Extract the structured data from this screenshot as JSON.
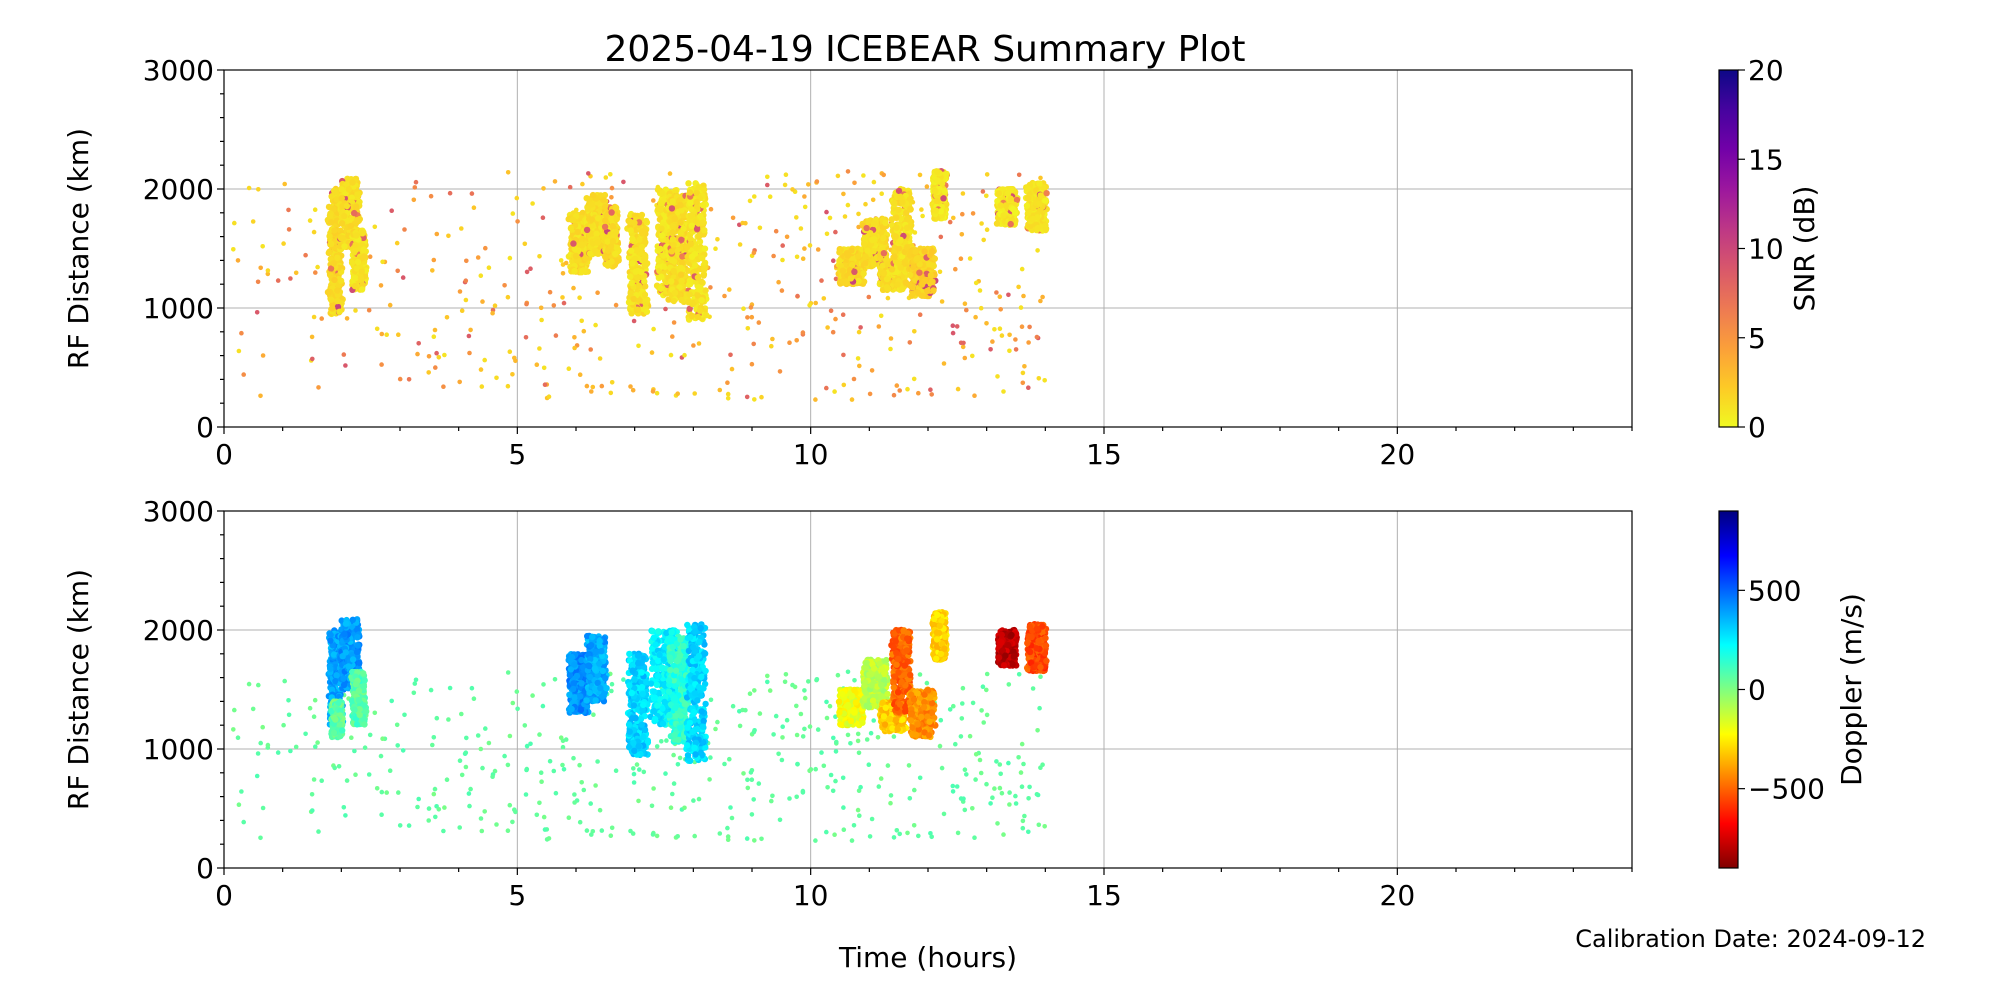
{
  "title": "2025-04-19 ICEBEAR Summary Plot",
  "footer": "Calibration Date: 2024-09-12",
  "chart_data": [
    {
      "type": "scatter",
      "name": "snr-panel",
      "xlabel": "",
      "ylabel": "RF Distance (km)",
      "xlim": [
        0,
        24
      ],
      "ylim": [
        0,
        3000
      ],
      "xticks": [
        "0",
        "5",
        "10",
        "15",
        "20"
      ],
      "yticks": [
        "0",
        "1000",
        "2000",
        "3000"
      ],
      "grid": true,
      "colorbar": {
        "label": "SNR (dB)",
        "range": [
          0,
          20
        ],
        "ticks": [
          "0",
          "5",
          "10",
          "15",
          "20"
        ],
        "colormap": "plasma_r",
        "stops": [
          "#f0f921",
          "#fdca26",
          "#fb9f3a",
          "#ed7953",
          "#d8576b",
          "#bd3786",
          "#9c179e",
          "#7201a8",
          "#46039f",
          "#0d0887"
        ]
      },
      "clusters": [
        {
          "t": [
            1.8,
            2.0
          ],
          "r": [
            950,
            2000
          ],
          "c": 1.5
        },
        {
          "t": [
            2.0,
            2.3
          ],
          "r": [
            1500,
            2090
          ],
          "c": 1.2
        },
        {
          "t": [
            2.2,
            2.4
          ],
          "r": [
            1150,
            1650
          ],
          "c": 1.0
        },
        {
          "t": [
            5.9,
            6.2
          ],
          "r": [
            1300,
            1800
          ],
          "c": 1.3
        },
        {
          "t": [
            6.2,
            6.5
          ],
          "r": [
            1450,
            1950
          ],
          "c": 1.2
        },
        {
          "t": [
            6.5,
            6.7
          ],
          "r": [
            1350,
            1850
          ],
          "c": 1.4
        },
        {
          "t": [
            6.9,
            7.2
          ],
          "r": [
            950,
            1800
          ],
          "c": 1.2
        },
        {
          "t": [
            7.4,
            7.7
          ],
          "r": [
            1100,
            2000
          ],
          "c": 1.0
        },
        {
          "t": [
            7.6,
            7.9
          ],
          "r": [
            1050,
            1950
          ],
          "c": 1.3
        },
        {
          "t": [
            7.9,
            8.2
          ],
          "r": [
            900,
            2050
          ],
          "c": 1.0
        },
        {
          "t": [
            10.5,
            10.9
          ],
          "r": [
            1200,
            1500
          ],
          "c": 1.5
        },
        {
          "t": [
            10.9,
            11.3
          ],
          "r": [
            1350,
            1750
          ],
          "c": 1.4
        },
        {
          "t": [
            11.2,
            11.6
          ],
          "r": [
            1150,
            1400
          ],
          "c": 1.3
        },
        {
          "t": [
            11.4,
            11.7
          ],
          "r": [
            1300,
            2000
          ],
          "c": 1.2
        },
        {
          "t": [
            11.7,
            12.1
          ],
          "r": [
            1100,
            1500
          ],
          "c": 1.8
        },
        {
          "t": [
            12.1,
            12.3
          ],
          "r": [
            1750,
            2150
          ],
          "c": 0.8
        },
        {
          "t": [
            13.2,
            13.5
          ],
          "r": [
            1700,
            2000
          ],
          "c": 0.8
        },
        {
          "t": [
            13.7,
            14.0
          ],
          "r": [
            1650,
            2050
          ],
          "c": 0.9
        }
      ],
      "scatter_region": {
        "t": [
          0,
          14
        ],
        "r": [
          230,
          2150
        ],
        "count": 480
      }
    },
    {
      "type": "scatter",
      "name": "doppler-panel",
      "xlabel": "Time (hours)",
      "ylabel": "RF Distance (km)",
      "xlim": [
        0,
        24
      ],
      "ylim": [
        0,
        3000
      ],
      "xticks": [
        "0",
        "5",
        "10",
        "15",
        "20"
      ],
      "yticks": [
        "0",
        "1000",
        "2000",
        "3000"
      ],
      "grid": true,
      "colorbar": {
        "label": "Doppler (m/s)",
        "range": [
          -900,
          900
        ],
        "ticks": [
          "−500",
          "0",
          "500"
        ],
        "tick_values": [
          -500,
          0,
          500
        ],
        "colormap": "jet_r",
        "stops": [
          "#800000",
          "#ff0000",
          "#ff8000",
          "#ffff00",
          "#80ff80",
          "#00ffff",
          "#0080ff",
          "#0000ff",
          "#000080"
        ]
      },
      "clusters": [
        {
          "t": [
            1.8,
            2.0
          ],
          "r": [
            1200,
            2000
          ],
          "d": 380
        },
        {
          "t": [
            1.85,
            2.0
          ],
          "r": [
            1100,
            1400
          ],
          "d": 60
        },
        {
          "t": [
            2.0,
            2.3
          ],
          "r": [
            1500,
            2090
          ],
          "d": 400
        },
        {
          "t": [
            2.2,
            2.4
          ],
          "r": [
            1200,
            1650
          ],
          "d": 80
        },
        {
          "t": [
            5.9,
            6.2
          ],
          "r": [
            1300,
            1800
          ],
          "d": 420
        },
        {
          "t": [
            6.2,
            6.5
          ],
          "r": [
            1400,
            1950
          ],
          "d": 380
        },
        {
          "t": [
            6.9,
            7.2
          ],
          "r": [
            950,
            1800
          ],
          "d": 300
        },
        {
          "t": [
            7.3,
            7.7
          ],
          "r": [
            1200,
            2000
          ],
          "d": 250
        },
        {
          "t": [
            7.6,
            7.9
          ],
          "r": [
            1050,
            1950
          ],
          "d": 150
        },
        {
          "t": [
            7.9,
            8.2
          ],
          "r": [
            900,
            2050
          ],
          "d": 300
        },
        {
          "t": [
            10.5,
            10.9
          ],
          "r": [
            1200,
            1500
          ],
          "d": -200
        },
        {
          "t": [
            10.9,
            11.3
          ],
          "r": [
            1350,
            1750
          ],
          "d": -100
        },
        {
          "t": [
            11.2,
            11.6
          ],
          "r": [
            1150,
            1400
          ],
          "d": -320
        },
        {
          "t": [
            11.4,
            11.7
          ],
          "r": [
            1300,
            2000
          ],
          "d": -500
        },
        {
          "t": [
            11.7,
            12.1
          ],
          "r": [
            1100,
            1500
          ],
          "d": -420
        },
        {
          "t": [
            12.1,
            12.3
          ],
          "r": [
            1750,
            2150
          ],
          "d": -300
        },
        {
          "t": [
            13.2,
            13.5
          ],
          "r": [
            1700,
            2000
          ],
          "d": -800
        },
        {
          "t": [
            13.7,
            14.0
          ],
          "r": [
            1650,
            2050
          ],
          "d": -550
        }
      ],
      "scatter_region": {
        "t": [
          0,
          14
        ],
        "r": [
          230,
          1650
        ],
        "count": 480,
        "d": 50
      }
    }
  ]
}
